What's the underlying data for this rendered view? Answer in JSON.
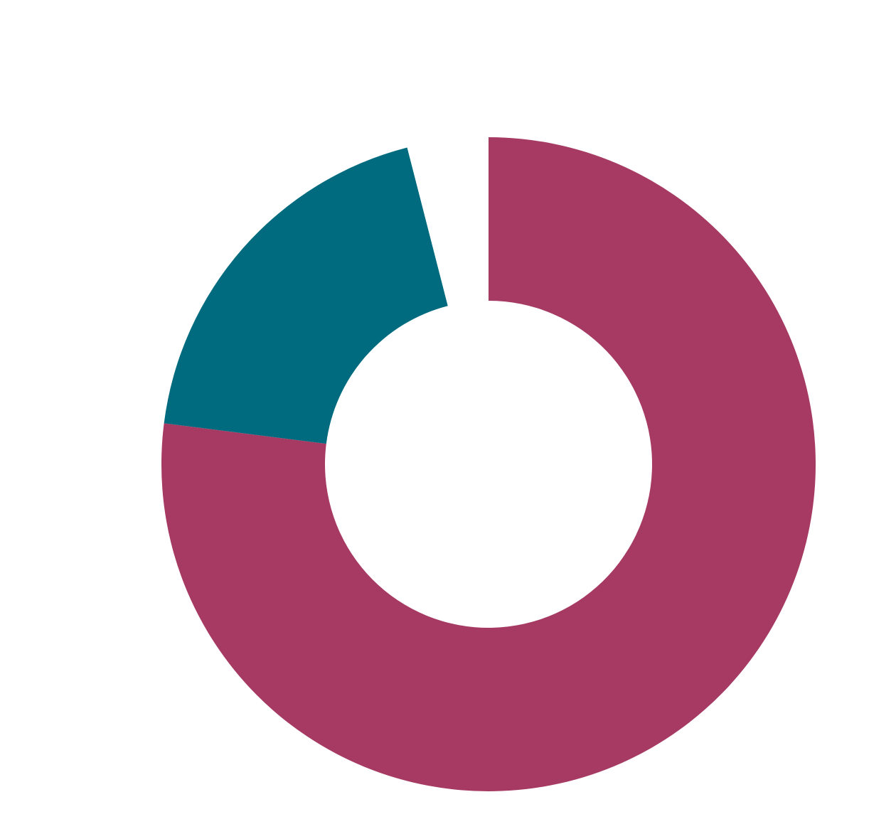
{
  "chart_data": {
    "type": "donut",
    "values": [
      77,
      19,
      4
    ],
    "colors": [
      "#a63a63",
      "#006b7f",
      "#ffffff"
    ]
  }
}
